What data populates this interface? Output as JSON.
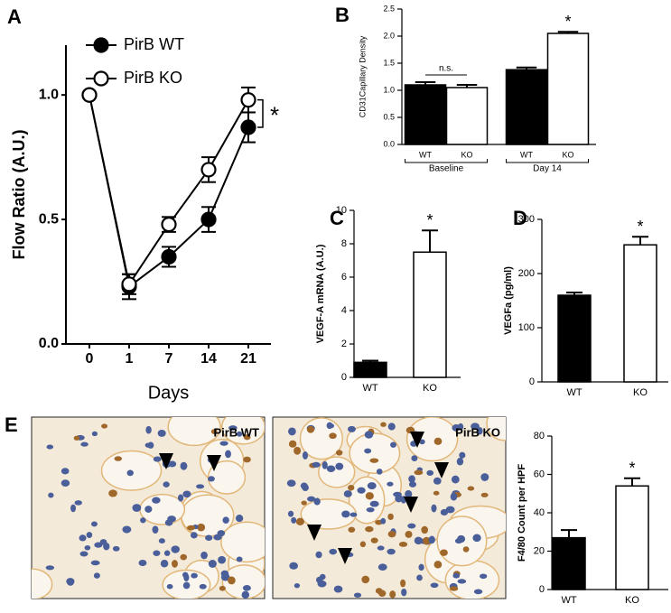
{
  "chart_data": [
    {
      "type": "line",
      "panel": "A",
      "ylabel": "Flow Ratio  (A.U.)",
      "xlabel": "Days",
      "categories": [
        "0",
        "1",
        "7",
        "14",
        "21"
      ],
      "series": [
        {
          "name": "PirB WT",
          "color": "#000000",
          "values": [
            1.0,
            0.23,
            0.35,
            0.5,
            0.87
          ],
          "errors": [
            0,
            0.05,
            0.04,
            0.05,
            0.06
          ]
        },
        {
          "name": "PirB KO",
          "color": "#ffffff",
          "values": [
            1.0,
            0.24,
            0.48,
            0.7,
            0.98
          ],
          "errors": [
            0,
            0.04,
            0.03,
            0.05,
            0.05
          ]
        }
      ],
      "ylim": [
        0,
        1.2
      ],
      "yticks": [
        {
          "value": 0,
          "label": "0.0"
        },
        0.5,
        {
          "value": 1,
          "label": "1.0"
        }
      ],
      "legend": "upper left",
      "annotations": [
        "*"
      ]
    },
    {
      "type": "bar",
      "panel": "B",
      "ylabel": "CD31Capillary Density",
      "categories": [
        "WT",
        "KO",
        "WT",
        "KO"
      ],
      "groups": [
        "Baseline",
        "Day 14"
      ],
      "values": [
        1.1,
        1.05,
        1.38,
        2.05
      ],
      "errors": [
        0.05,
        0.05,
        0.04,
        0.03
      ],
      "colors": [
        "#000000",
        "#ffffff",
        "#000000",
        "#ffffff"
      ],
      "ylim": [
        0,
        2.5
      ],
      "yticks": [
        {
          "value": 0,
          "label": "0.0"
        },
        0.5,
        {
          "value": 1,
          "label": "1.0"
        },
        1.5,
        {
          "value": 2,
          "label": "2.0"
        },
        2.5
      ],
      "annotations": [
        "n.s.",
        "*"
      ]
    },
    {
      "type": "bar",
      "panel": "C",
      "ylabel": "VEGF-A mRNA (A.U.)",
      "categories": [
        "WT",
        "KO"
      ],
      "values": [
        0.9,
        7.5
      ],
      "errors": [
        0.1,
        1.3
      ],
      "colors": [
        "#000000",
        "#ffffff"
      ],
      "ylim": [
        0,
        10
      ],
      "yticks": [
        0,
        2,
        4,
        6,
        8,
        10
      ],
      "annotations": [
        "*"
      ]
    },
    {
      "type": "bar",
      "panel": "D",
      "ylabel": "VEGFa (pg/ml)",
      "categories": [
        "WT",
        "KO"
      ],
      "values": [
        160,
        253
      ],
      "errors": [
        5,
        15
      ],
      "colors": [
        "#000000",
        "#ffffff"
      ],
      "ylim": [
        0,
        300
      ],
      "yticks": [
        0,
        100,
        200,
        300
      ],
      "annotations": [
        "*"
      ]
    },
    {
      "type": "bar",
      "panel": "E",
      "ylabel": "F4/80 Count per HPF",
      "categories": [
        "WT",
        "KO"
      ],
      "values": [
        27,
        54
      ],
      "errors": [
        4,
        4
      ],
      "colors": [
        "#000000",
        "#ffffff"
      ],
      "ylim": [
        0,
        80
      ],
      "yticks": [
        0,
        20,
        40,
        60,
        80
      ],
      "annotations": [
        "*"
      ]
    }
  ],
  "micrographs": [
    {
      "label": "PirB  WT"
    },
    {
      "label": "PirB KO"
    }
  ]
}
